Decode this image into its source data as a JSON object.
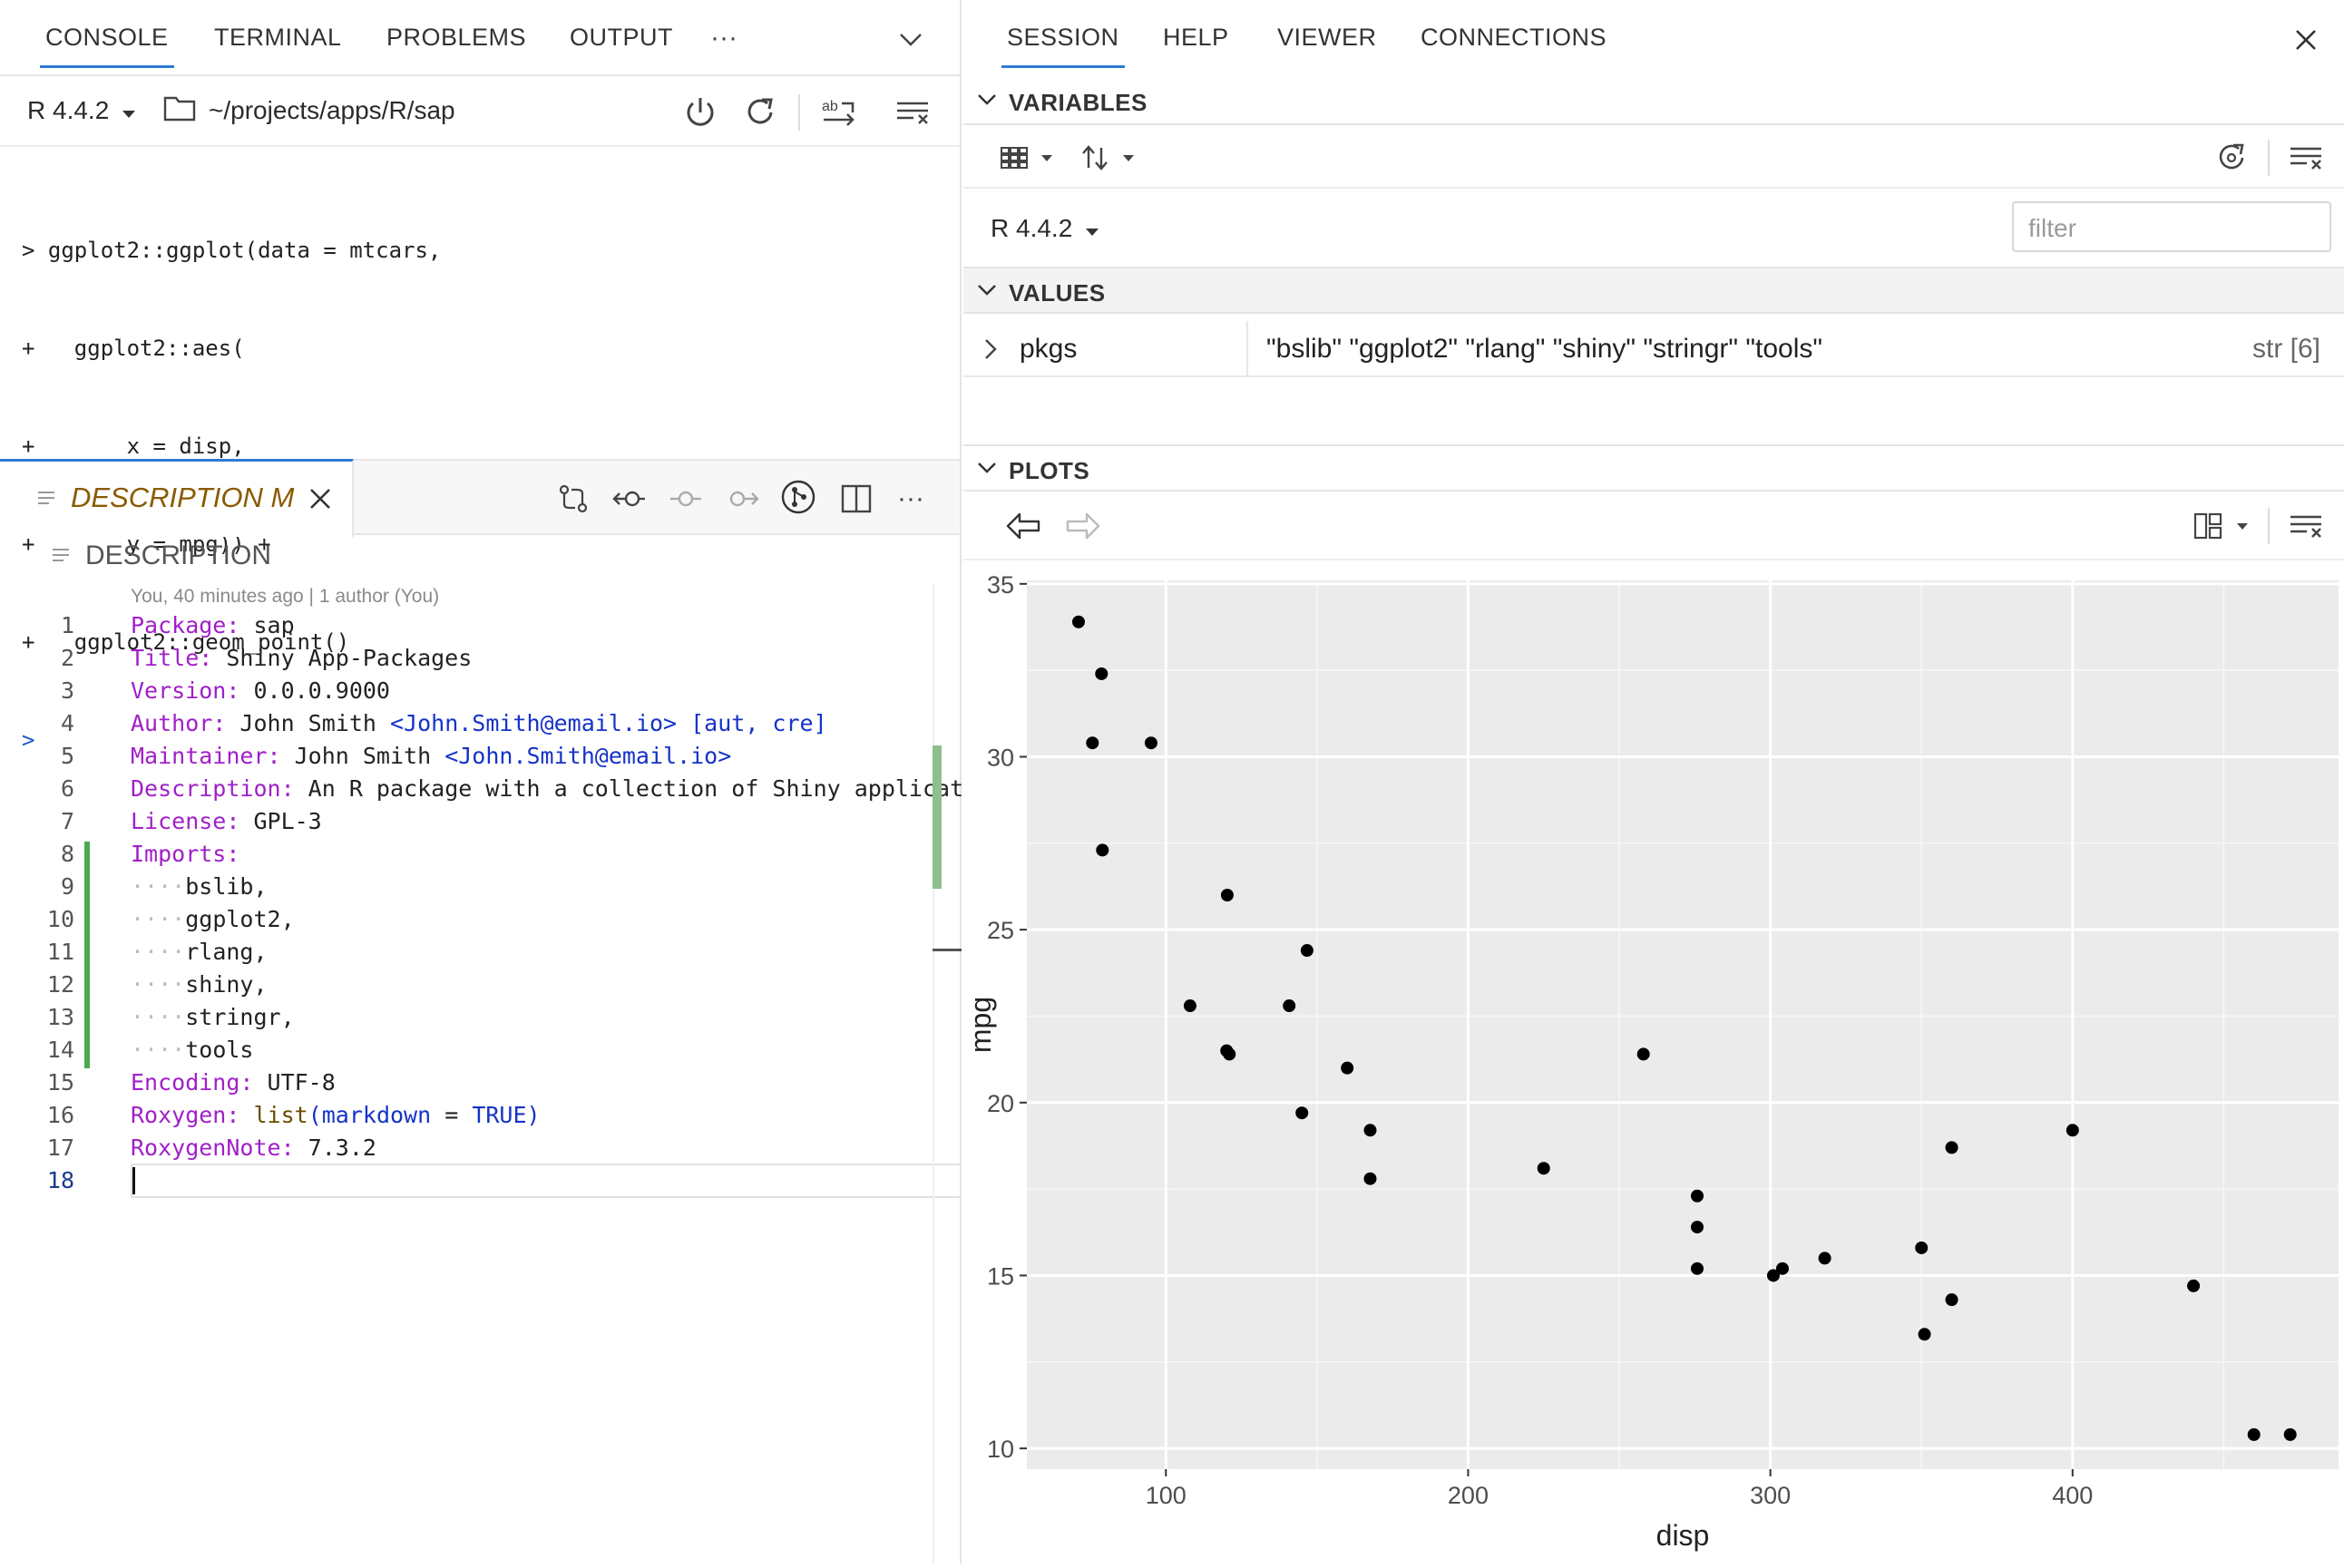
{
  "left": {
    "tabs": [
      "CONSOLE",
      "TERMINAL",
      "PROBLEMS",
      "OUTPUT"
    ],
    "active_tab": "CONSOLE",
    "console": {
      "r_version": "R 4.4.2",
      "path": "~/projects/apps/R/sap",
      "lines": [
        {
          "prompt": ">",
          "text": " ggplot2::ggplot(data = mtcars,"
        },
        {
          "prompt": "+",
          "text": "   ggplot2::aes("
        },
        {
          "prompt": "+",
          "text": "       x = disp,"
        },
        {
          "prompt": "+",
          "text": "       y = mpg)) +"
        },
        {
          "prompt": "+",
          "text": "   ggplot2::geom_point()"
        },
        {
          "prompt": ">",
          "text": ""
        }
      ]
    },
    "editor": {
      "tab_title": "DESCRIPTION M",
      "breadcrumb": "DESCRIPTION",
      "blame": "You, 40 minutes ago | 1 author (You)",
      "lines": [
        {
          "n": "1",
          "key": "Package:",
          "rest": " sap"
        },
        {
          "n": "2",
          "key": "Title:",
          "rest": " Shiny App-Packages"
        },
        {
          "n": "3",
          "key": "Version:",
          "rest": " 0.0.0.9000"
        },
        {
          "n": "4",
          "key": "Author:",
          "rest": " John Smith ",
          "link": "<John.Smith@email.io>",
          "tail": " [aut, cre]"
        },
        {
          "n": "5",
          "key": "Maintainer:",
          "rest": " John Smith ",
          "link": "<John.Smith@email.io>"
        },
        {
          "n": "6",
          "key": "Description:",
          "rest": " An R package with a collection of Shiny application"
        },
        {
          "n": "7",
          "key": "License:",
          "rest": " GPL-3"
        },
        {
          "n": "8",
          "key": "Imports:",
          "rest": " "
        },
        {
          "n": "9",
          "indent": true,
          "rest": "bslib,"
        },
        {
          "n": "10",
          "indent": true,
          "rest": "ggplot2,"
        },
        {
          "n": "11",
          "indent": true,
          "rest": "rlang,"
        },
        {
          "n": "12",
          "indent": true,
          "rest": "shiny,"
        },
        {
          "n": "13",
          "indent": true,
          "rest": "stringr,"
        },
        {
          "n": "14",
          "indent": true,
          "rest": "tools"
        },
        {
          "n": "15",
          "key": "Encoding:",
          "rest": " UTF-8"
        },
        {
          "n": "16",
          "key": "Roxygen:",
          "rest": " ",
          "fn": "list",
          "paren": "(markdown",
          "eq": " = ",
          "kw": "TRUE)"
        },
        {
          "n": "17",
          "key": "RoxygenNote:",
          "rest": " 7.3.2"
        },
        {
          "n": "18",
          "rest": ""
        }
      ]
    }
  },
  "right": {
    "tabs": [
      "SESSION",
      "HELP",
      "VIEWER",
      "CONNECTIONS"
    ],
    "active_tab": "SESSION",
    "variables_header": "VARIABLES",
    "r_version": "R 4.4.2",
    "filter_placeholder": "filter",
    "values_header": "VALUES",
    "values": [
      {
        "name": "pkgs",
        "value": "\"bslib\" \"ggplot2\" \"rlang\" \"shiny\" \"stringr\" \"tools\"",
        "type": "str [6]"
      }
    ],
    "plots_header": "PLOTS"
  },
  "chart_data": {
    "type": "scatter",
    "xlabel": "disp",
    "ylabel": "mpg",
    "xlim": [
      54,
      488
    ],
    "ylim": [
      9.4,
      35.1
    ],
    "xticks": [
      100,
      200,
      300,
      400
    ],
    "yticks": [
      10,
      15,
      20,
      25,
      30,
      35
    ],
    "grid": true,
    "background": "#ebebeb",
    "points": [
      [
        71.1,
        33.9
      ],
      [
        78.7,
        32.4
      ],
      [
        75.7,
        30.4
      ],
      [
        95.1,
        30.4
      ],
      [
        79.0,
        27.3
      ],
      [
        120.3,
        26.0
      ],
      [
        146.7,
        24.4
      ],
      [
        108.0,
        22.8
      ],
      [
        140.8,
        22.8
      ],
      [
        120.1,
        21.5
      ],
      [
        121.0,
        21.4
      ],
      [
        258.0,
        21.4
      ],
      [
        160.0,
        21.0
      ],
      [
        167.6,
        19.2
      ],
      [
        400.0,
        19.2
      ],
      [
        145.0,
        19.7
      ],
      [
        360.0,
        18.7
      ],
      [
        225.0,
        18.1
      ],
      [
        167.6,
        17.8
      ],
      [
        275.8,
        17.3
      ],
      [
        275.8,
        16.4
      ],
      [
        275.8,
        15.2
      ],
      [
        304.0,
        15.2
      ],
      [
        301.0,
        15.0
      ],
      [
        318.0,
        15.5
      ],
      [
        350.0,
        15.8
      ],
      [
        351.0,
        13.3
      ],
      [
        360.0,
        14.3
      ],
      [
        440.0,
        14.7
      ],
      [
        460.0,
        10.4
      ],
      [
        472.0,
        10.4
      ]
    ]
  }
}
